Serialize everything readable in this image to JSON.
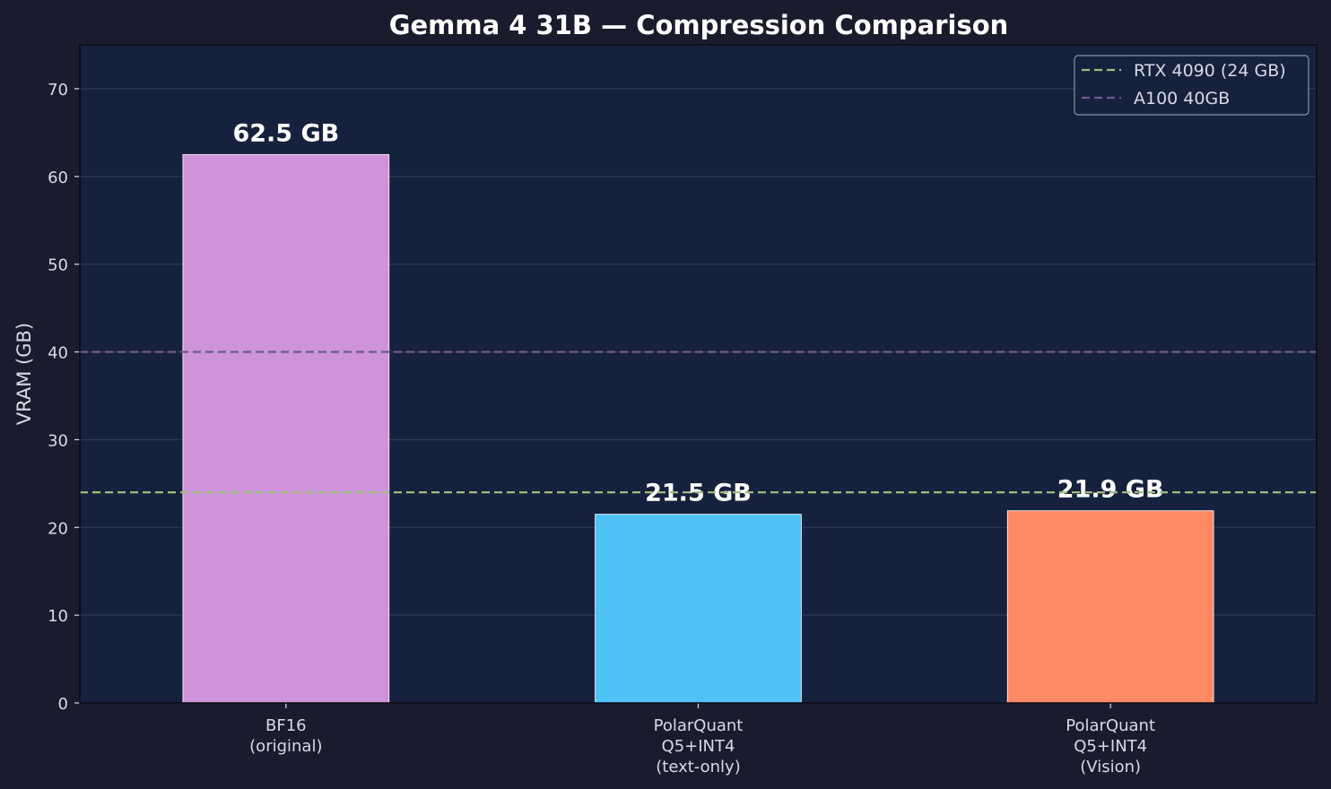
{
  "colors": {
    "figure_bg": "#1b1b2e",
    "axes_bg": "#16213e",
    "grid": "#2b3a58",
    "text": "#d9d9e6",
    "title": "#ffffff",
    "rtx_line": "#9fbc7f",
    "a100_line": "#6f5a8e"
  },
  "chart_data": {
    "type": "bar",
    "title": "Gemma 4 31B — Compression Comparison",
    "xlabel": "",
    "ylabel": "VRAM (GB)",
    "ylim": [
      0,
      75
    ],
    "yticks": [
      0,
      10,
      20,
      30,
      40,
      50,
      60,
      70
    ],
    "grid": true,
    "categories": [
      [
        "BF16",
        "(original)"
      ],
      [
        "PolarQuant",
        "Q5+INT4",
        "(text-only)"
      ],
      [
        "PolarQuant",
        "Q5+INT4",
        "(Vision)"
      ]
    ],
    "values": [
      62.5,
      21.5,
      21.9
    ],
    "value_labels": [
      "62.5 GB",
      "21.5 GB",
      "21.9 GB"
    ],
    "bar_colors": [
      "#ce93d8",
      "#4fc3f7",
      "#ff8a65"
    ],
    "reference_lines": [
      {
        "name": "RTX 4090 (24 GB)",
        "y": 24,
        "color": "#9fbc7f"
      },
      {
        "name": "A100 40GB",
        "y": 40,
        "color": "#6f5a8e"
      }
    ],
    "legend_position": "top-right"
  }
}
